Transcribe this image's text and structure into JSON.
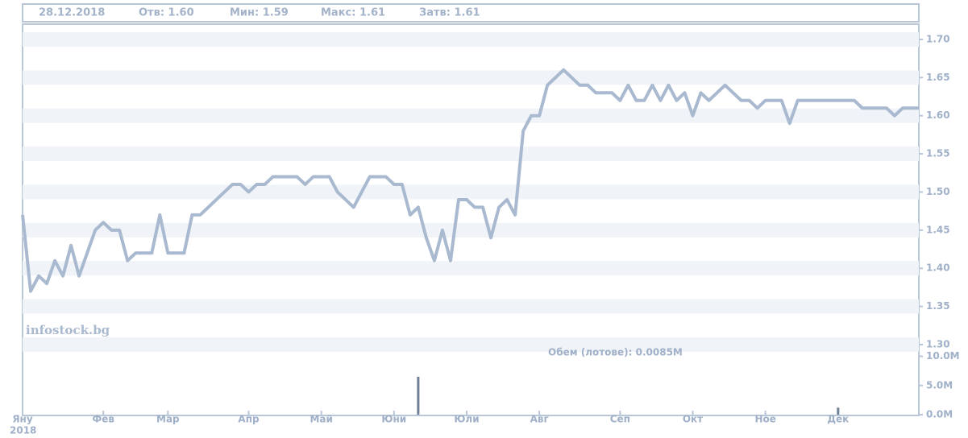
{
  "header": {
    "date": "28.12.2018",
    "open": "Отв: 1.60",
    "low": "Мин: 1.59",
    "high": "Макс: 1.61",
    "close": "Затв: 1.61"
  },
  "watermark": "infostock.bg",
  "chart_data": [
    {
      "type": "line",
      "color": "#a9b9cf",
      "grid": true,
      "x": [
        0,
        1,
        2,
        3,
        4,
        5,
        6,
        7,
        8,
        9,
        10,
        11,
        12,
        13,
        14,
        15,
        16,
        17,
        18,
        19,
        20,
        21,
        22,
        23,
        24,
        25,
        26,
        27,
        28,
        29,
        30,
        31,
        32,
        33,
        34,
        35,
        36,
        37,
        38,
        39,
        40,
        41,
        42,
        43,
        44,
        45,
        46,
        47,
        48,
        49,
        50,
        51,
        52,
        53,
        54,
        55,
        56,
        57,
        58,
        59,
        60,
        61,
        62,
        63,
        64,
        65,
        66,
        67,
        68,
        69,
        70,
        71,
        72,
        73,
        74,
        75,
        76,
        77,
        78,
        79,
        80,
        81,
        82,
        83,
        84,
        85,
        86,
        87,
        88,
        89,
        90,
        91,
        92,
        93,
        94,
        95,
        96,
        97,
        98,
        99,
        100,
        101,
        102,
        103,
        104,
        105,
        106,
        107,
        108,
        109,
        110,
        111
      ],
      "values": [
        1.47,
        1.37,
        1.39,
        1.38,
        1.41,
        1.39,
        1.43,
        1.39,
        1.42,
        1.45,
        1.46,
        1.45,
        1.45,
        1.41,
        1.42,
        1.42,
        1.42,
        1.47,
        1.42,
        1.42,
        1.42,
        1.47,
        1.47,
        1.48,
        1.49,
        1.5,
        1.51,
        1.51,
        1.5,
        1.51,
        1.51,
        1.52,
        1.52,
        1.52,
        1.52,
        1.51,
        1.52,
        1.52,
        1.52,
        1.5,
        1.49,
        1.48,
        1.5,
        1.52,
        1.52,
        1.52,
        1.51,
        1.51,
        1.47,
        1.48,
        1.44,
        1.41,
        1.45,
        1.41,
        1.49,
        1.49,
        1.48,
        1.48,
        1.44,
        1.48,
        1.49,
        1.47,
        1.58,
        1.6,
        1.6,
        1.64,
        1.65,
        1.66,
        1.65,
        1.64,
        1.64,
        1.63,
        1.63,
        1.63,
        1.62,
        1.64,
        1.62,
        1.62,
        1.64,
        1.62,
        1.64,
        1.62,
        1.63,
        1.6,
        1.63,
        1.62,
        1.63,
        1.64,
        1.63,
        1.62,
        1.62,
        1.61,
        1.62,
        1.62,
        1.62,
        1.59,
        1.62,
        1.62,
        1.62,
        1.62,
        1.62,
        1.62,
        1.62,
        1.62,
        1.61,
        1.61,
        1.61,
        1.61,
        1.6,
        1.61,
        1.61,
        1.61
      ],
      "xlim": [
        0,
        111
      ],
      "ylim": [
        1.3,
        1.72
      ],
      "yticks": [
        {
          "value": 1.3,
          "label": "1.30"
        },
        {
          "value": 1.35,
          "label": "1.35"
        },
        {
          "value": 1.4,
          "label": "1.40"
        },
        {
          "value": 1.45,
          "label": "1.45"
        },
        {
          "value": 1.5,
          "label": "1.50"
        },
        {
          "value": 1.55,
          "label": "1.55"
        },
        {
          "value": 1.6,
          "label": "1.60"
        },
        {
          "value": 1.65,
          "label": "1.65"
        },
        {
          "value": 1.7,
          "label": "1.70"
        }
      ]
    },
    {
      "type": "bar",
      "title": "Обем (лотове): 0.0085M",
      "color": "#6f8196",
      "x": [
        49,
        101
      ],
      "values": [
        6500000,
        1200000
      ],
      "xlim": [
        0,
        111
      ],
      "ylim": [
        0,
        12000000
      ],
      "yticks": [
        {
          "value": 0,
          "label": "0.0M"
        },
        {
          "value": 5000000,
          "label": "5.0M"
        },
        {
          "value": 10000000,
          "label": "10.0M"
        }
      ],
      "xticks": [
        {
          "value": 0,
          "label": "Яну"
        },
        {
          "value": 10,
          "label": "Фев"
        },
        {
          "value": 18,
          "label": "Мар"
        },
        {
          "value": 28,
          "label": "Апр"
        },
        {
          "value": 37,
          "label": "Май"
        },
        {
          "value": 46,
          "label": "Юни"
        },
        {
          "value": 55,
          "label": "Юли"
        },
        {
          "value": 64,
          "label": "Авг"
        },
        {
          "value": 74,
          "label": "Сеп"
        },
        {
          "value": 83,
          "label": "Окт"
        },
        {
          "value": 92,
          "label": "Ное"
        },
        {
          "value": 101,
          "label": "Дек"
        }
      ],
      "year_label": "2018"
    }
  ]
}
